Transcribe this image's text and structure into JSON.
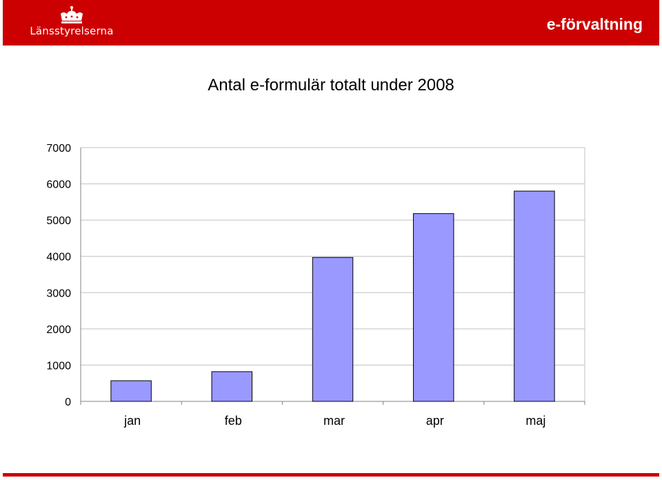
{
  "header": {
    "logo_text": "Länsstyrelserna",
    "title": "e-förvaltning",
    "logo_icon": "crown-icon",
    "color": "#cc0000"
  },
  "chart_data": {
    "type": "bar",
    "title": "Antal e-formulär totalt under 2008",
    "xlabel": "",
    "ylabel": "",
    "categories": [
      "jan",
      "feb",
      "mar",
      "apr",
      "maj"
    ],
    "values": [
      570,
      820,
      3970,
      5180,
      5800
    ],
    "ylim": [
      0,
      7000
    ],
    "yticks": [
      "0",
      "1000",
      "2000",
      "3000",
      "4000",
      "5000",
      "6000",
      "7000"
    ],
    "grid": true,
    "legend": "none",
    "bar_color": "#9999ff"
  }
}
